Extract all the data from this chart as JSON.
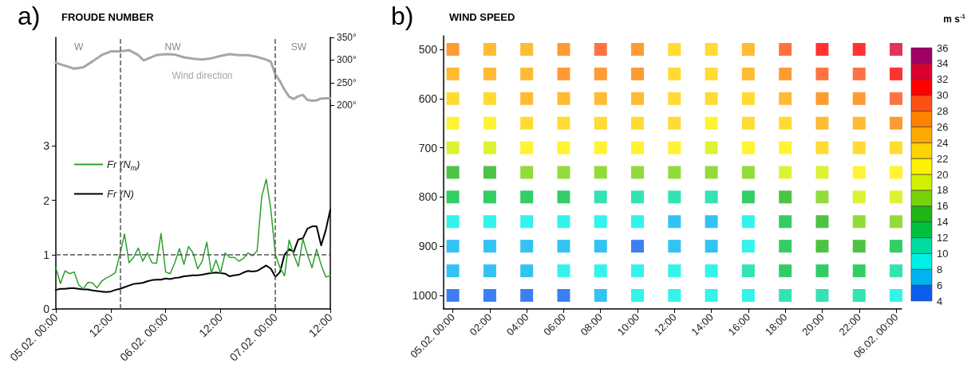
{
  "chart_data": [
    {
      "type": "line",
      "title": "FROUDE NUMBER",
      "annotations": [
        "a)",
        "W",
        "NW",
        "SW"
      ],
      "xlim": [
        "--02-05T00:00",
        "--02-07T12:00"
      ],
      "xticks": [
        {
          "value": "--02-05T00:00",
          "label": "05.02. 00:00"
        },
        {
          "value": "--02-05T12:00",
          "label": "12:00"
        },
        {
          "value": "--02-06T00:00",
          "label": "06.02. 00:00"
        },
        {
          "value": "--02-06T12:00",
          "label": "12:00"
        },
        {
          "value": "--02-07T00:00",
          "label": "07.02. 00:00"
        },
        {
          "value": "--02-07T12:00",
          "label": "12:00"
        }
      ],
      "ylim": [
        0,
        5
      ],
      "yticks": [
        0,
        1,
        2,
        3
      ],
      "y2lim": [
        -250,
        350
      ],
      "y2ticks": [
        {
          "value": 200,
          "label": "200°"
        },
        {
          "value": 250,
          "label": "250°"
        },
        {
          "value": 300,
          "label": "300°"
        },
        {
          "value": 350,
          "label": "350°"
        }
      ],
      "grid": false,
      "legend": "left",
      "marker": "none",
      "line_style": "solid",
      "ref_lines": [
        {
          "axis": "y",
          "value": 1,
          "color": "#555555",
          "line_style": "dashed"
        },
        {
          "axis": "x",
          "value": "--02-05T14:00",
          "color": "#555555",
          "line_style": "dashed"
        },
        {
          "axis": "x",
          "value": "--02-07T00:00",
          "color": "#555555",
          "line_style": "dashed"
        }
      ],
      "x": [
        "--02-05T00:00",
        "--02-05T01:00",
        "--02-05T02:00",
        "--02-05T03:00",
        "--02-05T04:00",
        "--02-05T05:00",
        "--02-05T06:00",
        "--02-05T07:00",
        "--02-05T08:00",
        "--02-05T09:00",
        "--02-05T10:00",
        "--02-05T11:00",
        "--02-05T12:00",
        "--02-05T13:00",
        "--02-05T14:00",
        "--02-05T15:00",
        "--02-05T16:00",
        "--02-05T17:00",
        "--02-05T18:00",
        "--02-05T19:00",
        "--02-05T20:00",
        "--02-05T21:00",
        "--02-05T22:00",
        "--02-05T23:00",
        "--02-06T00:00",
        "--02-06T01:00",
        "--02-06T02:00",
        "--02-06T03:00",
        "--02-06T04:00",
        "--02-06T05:00",
        "--02-06T06:00",
        "--02-06T07:00",
        "--02-06T08:00",
        "--02-06T09:00",
        "--02-06T10:00",
        "--02-06T11:00",
        "--02-06T12:00",
        "--02-06T13:00",
        "--02-06T14:00",
        "--02-06T15:00",
        "--02-06T16:00",
        "--02-06T17:00",
        "--02-06T18:00",
        "--02-06T19:00",
        "--02-06T20:00",
        "--02-06T21:00",
        "--02-06T22:00",
        "--02-06T23:00",
        "--02-07T00:00",
        "--02-07T01:00",
        "--02-07T02:00",
        "--02-07T03:00",
        "--02-07T04:00",
        "--02-07T05:00",
        "--02-07T06:00",
        "--02-07T07:00",
        "--02-07T08:00",
        "--02-07T09:00",
        "--02-07T10:00",
        "--02-07T11:00",
        "--02-07T12:00"
      ],
      "series": [
        {
          "name": "Fr (N$_{m}$)",
          "color": "#2ca02c",
          "values": [
            0.76,
            0.47,
            0.7,
            0.65,
            0.68,
            0.44,
            0.37,
            0.49,
            0.48,
            0.39,
            0.51,
            0.57,
            0.61,
            0.67,
            1.0,
            1.38,
            0.85,
            0.95,
            1.12,
            0.88,
            1.03,
            0.85,
            0.84,
            1.39,
            0.68,
            0.65,
            0.85,
            1.11,
            0.82,
            1.15,
            1.03,
            0.74,
            0.88,
            1.23,
            0.66,
            0.9,
            0.66,
            1.03,
            0.95,
            0.95,
            0.88,
            0.93,
            1.03,
            0.98,
            1.07,
            2.07,
            2.39,
            1.83,
            1.0,
            0.76,
            0.61,
            1.27,
            1.0,
            0.78,
            1.29,
            1.0,
            0.76,
            1.1,
            0.81,
            0.59,
            0.61
          ]
        },
        {
          "name": "Fr (N)",
          "color": "#000000",
          "values": [
            0.35,
            0.37,
            0.37,
            0.38,
            0.38,
            0.37,
            0.36,
            0.36,
            0.34,
            0.33,
            0.32,
            0.31,
            0.32,
            0.35,
            0.37,
            0.4,
            0.43,
            0.46,
            0.47,
            0.48,
            0.51,
            0.53,
            0.54,
            0.54,
            0.56,
            0.55,
            0.57,
            0.58,
            0.6,
            0.61,
            0.62,
            0.62,
            0.63,
            0.65,
            0.66,
            0.67,
            0.66,
            0.65,
            0.6,
            0.62,
            0.63,
            0.67,
            0.7,
            0.69,
            0.7,
            0.75,
            0.8,
            0.74,
            0.59,
            0.68,
            1.0,
            1.1,
            1.05,
            1.28,
            1.3,
            1.48,
            1.52,
            1.52,
            1.17,
            1.45,
            1.83
          ]
        },
        {
          "name": "Wind direction",
          "color": "#a6a6a6",
          "axis": "y2",
          "x": [
            "--02-05T00:00",
            "--02-05T04:00",
            "--02-05T06:00",
            "--02-05T08:00",
            "--02-05T10:00",
            "--02-05T12:00",
            "--02-05T14:00",
            "--02-05T16:00",
            "--02-05T18:00",
            "--02-05T19:12",
            "--02-05T22:00",
            "--02-06T00:00",
            "--02-06T02:00",
            "--02-06T04:00",
            "--02-06T06:00",
            "--02-06T08:00",
            "--02-06T10:00",
            "--02-06T12:00",
            "--02-06T14:00",
            "--02-06T16:00",
            "--02-06T18:00",
            "--02-06T20:00",
            "--02-06T22:00",
            "--02-06T23:00",
            "--02-07T00:00",
            "--02-07T01:00",
            "--02-07T02:00",
            "--02-07T03:00",
            "--02-07T04:00",
            "--02-07T05:00",
            "--02-07T06:00",
            "--02-07T07:00",
            "--02-07T08:00",
            "--02-07T09:00",
            "--02-07T10:00",
            "--02-07T12:00"
          ],
          "values": [
            294,
            281,
            284,
            297,
            311,
            319,
            319,
            322,
            311,
            299,
            311,
            313,
            312,
            306,
            303,
            301,
            304,
            309,
            313,
            311,
            311,
            307,
            301,
            296,
            268,
            253,
            234,
            219,
            214,
            220,
            223,
            212,
            210,
            211,
            215,
            216
          ]
        }
      ]
    },
    {
      "type": "scatter",
      "title": "WIND SPEED",
      "annotations": [
        "b)"
      ],
      "clabel": "m s$^{-1}$",
      "marker": "square",
      "xlim": [
        "--02-04T23:30",
        "--02-06T00:18"
      ],
      "xticks": [
        {
          "value": "--02-05T00:00",
          "label": "05.02. 00:00"
        },
        {
          "value": "--02-05T02:00",
          "label": "02:00"
        },
        {
          "value": "--02-05T04:00",
          "label": "04:00"
        },
        {
          "value": "--02-05T06:00",
          "label": "06:00"
        },
        {
          "value": "--02-05T08:00",
          "label": "08:00"
        },
        {
          "value": "--02-05T10:00",
          "label": "10:00"
        },
        {
          "value": "--02-05T12:00",
          "label": "12:00"
        },
        {
          "value": "--02-05T14:00",
          "label": "14:00"
        },
        {
          "value": "--02-05T16:00",
          "label": "16:00"
        },
        {
          "value": "--02-05T18:00",
          "label": "18:00"
        },
        {
          "value": "--02-05T20:00",
          "label": "20:00"
        },
        {
          "value": "--02-05T22:00",
          "label": "22:00"
        },
        {
          "value": "--02-06T00:00",
          "label": "06.02. 00:00"
        }
      ],
      "ylim": [
        1027.5,
        472.5
      ],
      "yticks": [
        500,
        600,
        700,
        800,
        900,
        1000
      ],
      "clim": [
        4,
        36
      ],
      "cticks": [
        4,
        6,
        8,
        10,
        12,
        14,
        16,
        18,
        20,
        22,
        24,
        26,
        28,
        30,
        32,
        34,
        36
      ],
      "series": [
        {
          "x": [
            "--02-05T00:00",
            "--02-05T02:00",
            "--02-05T04:00",
            "--02-05T06:00",
            "--02-05T08:00",
            "--02-05T10:00",
            "--02-05T12:00",
            "--02-05T14:00",
            "--02-05T16:00",
            "--02-05T18:00",
            "--02-05T20:00",
            "--02-05T22:00",
            "--02-06T00:00",
            "--02-05T00:00",
            "--02-05T02:00",
            "--02-05T04:00",
            "--02-05T06:00",
            "--02-05T08:00",
            "--02-05T10:00",
            "--02-05T12:00",
            "--02-05T14:00",
            "--02-05T16:00",
            "--02-05T18:00",
            "--02-05T20:00",
            "--02-05T22:00",
            "--02-06T00:00",
            "--02-05T00:00",
            "--02-05T02:00",
            "--02-05T04:00",
            "--02-05T06:00",
            "--02-05T08:00",
            "--02-05T10:00",
            "--02-05T12:00",
            "--02-05T14:00",
            "--02-05T16:00",
            "--02-05T18:00",
            "--02-05T20:00",
            "--02-05T22:00",
            "--02-06T00:00",
            "--02-05T00:00",
            "--02-05T02:00",
            "--02-05T04:00",
            "--02-05T06:00",
            "--02-05T08:00",
            "--02-05T10:00",
            "--02-05T12:00",
            "--02-05T14:00",
            "--02-05T16:00",
            "--02-05T18:00",
            "--02-05T20:00",
            "--02-05T22:00",
            "--02-06T00:00",
            "--02-05T00:00",
            "--02-05T02:00",
            "--02-05T04:00",
            "--02-05T06:00",
            "--02-05T08:00",
            "--02-05T10:00",
            "--02-05T12:00",
            "--02-05T14:00",
            "--02-05T16:00",
            "--02-05T18:00",
            "--02-05T20:00",
            "--02-05T22:00",
            "--02-06T00:00",
            "--02-05T00:00",
            "--02-05T02:00",
            "--02-05T04:00",
            "--02-05T06:00",
            "--02-05T08:00",
            "--02-05T10:00",
            "--02-05T12:00",
            "--02-05T14:00",
            "--02-05T16:00",
            "--02-05T18:00",
            "--02-05T20:00",
            "--02-05T22:00",
            "--02-06T00:00",
            "--02-05T00:00",
            "--02-05T02:00",
            "--02-05T04:00",
            "--02-05T06:00",
            "--02-05T08:00",
            "--02-05T10:00",
            "--02-05T12:00",
            "--02-05T14:00",
            "--02-05T16:00",
            "--02-05T18:00",
            "--02-05T20:00",
            "--02-05T22:00",
            "--02-06T00:00",
            "--02-05T00:00",
            "--02-05T02:00",
            "--02-05T04:00",
            "--02-05T06:00",
            "--02-05T08:00",
            "--02-05T10:00",
            "--02-05T12:00",
            "--02-05T14:00",
            "--02-05T16:00",
            "--02-05T18:00",
            "--02-05T20:00",
            "--02-05T22:00",
            "--02-06T00:00",
            "--02-05T00:00",
            "--02-05T02:00",
            "--02-05T04:00",
            "--02-05T06:00",
            "--02-05T08:00",
            "--02-05T10:00",
            "--02-05T12:00",
            "--02-05T14:00",
            "--02-05T16:00",
            "--02-05T18:00",
            "--02-05T20:00",
            "--02-05T22:00",
            "--02-06T00:00",
            "--02-05T00:00",
            "--02-05T02:00",
            "--02-05T04:00",
            "--02-05T06:00",
            "--02-05T08:00",
            "--02-05T10:00",
            "--02-05T12:00",
            "--02-05T14:00",
            "--02-05T16:00",
            "--02-05T18:00",
            "--02-05T20:00",
            "--02-05T22:00",
            "--02-06T00:00",
            "--02-05T00:00",
            "--02-05T02:00",
            "--02-05T04:00",
            "--02-05T06:00",
            "--02-05T08:00",
            "--02-05T10:00",
            "--02-05T12:00",
            "--02-05T14:00",
            "--02-05T16:00",
            "--02-05T18:00",
            "--02-05T20:00",
            "--02-05T22:00",
            "--02-06T00:00"
          ],
          "values": [
            500,
            500,
            500,
            500,
            500,
            500,
            500,
            500,
            500,
            500,
            500,
            500,
            500,
            550,
            550,
            550,
            550,
            550,
            550,
            550,
            550,
            550,
            550,
            550,
            550,
            550,
            600,
            600,
            600,
            600,
            600,
            600,
            600,
            600,
            600,
            600,
            600,
            600,
            600,
            650,
            650,
            650,
            650,
            650,
            650,
            650,
            650,
            650,
            650,
            650,
            650,
            650,
            700,
            700,
            700,
            700,
            700,
            700,
            700,
            700,
            700,
            700,
            700,
            700,
            700,
            750,
            750,
            750,
            750,
            750,
            750,
            750,
            750,
            750,
            750,
            750,
            750,
            750,
            800,
            800,
            800,
            800,
            800,
            800,
            800,
            800,
            800,
            800,
            800,
            800,
            800,
            850,
            850,
            850,
            850,
            850,
            850,
            850,
            850,
            850,
            850,
            850,
            850,
            850,
            900,
            900,
            900,
            900,
            900,
            900,
            900,
            900,
            900,
            900,
            900,
            900,
            900,
            950,
            950,
            950,
            950,
            950,
            950,
            950,
            950,
            950,
            950,
            950,
            950,
            950,
            1000,
            1000,
            1000,
            1000,
            1000,
            1000,
            1000,
            1000,
            1000,
            1000,
            1000,
            1000,
            1000
          ],
          "cvalues": [
            26,
            25,
            25,
            26,
            29,
            27,
            22,
            22,
            25,
            29,
            30,
            30,
            33,
            25,
            25,
            25,
            26,
            27,
            26,
            23,
            22,
            24,
            26,
            28,
            29,
            30,
            22,
            23,
            24,
            25,
            25,
            25,
            23,
            22,
            23,
            24,
            26,
            27,
            28,
            20,
            21,
            22,
            23,
            23,
            23,
            22,
            21,
            22,
            23,
            24,
            25,
            26,
            18,
            18,
            20,
            21,
            21,
            21,
            20,
            19,
            20,
            21,
            22,
            22,
            23,
            15,
            15,
            16,
            17,
            16,
            16,
            16,
            16,
            17,
            18,
            19,
            20,
            21,
            12,
            12,
            12,
            12,
            11,
            11,
            10,
            10,
            13,
            15,
            17,
            18,
            19,
            9,
            9,
            9,
            9,
            8,
            8,
            7,
            7,
            9,
            12,
            15,
            16,
            17,
            6,
            6,
            6,
            7,
            6,
            5,
            6,
            7,
            9,
            12,
            14,
            14,
            13,
            7,
            7,
            7,
            8,
            8,
            9,
            9,
            9,
            10,
            12,
            12,
            12,
            11,
            5,
            5,
            5,
            5,
            6,
            8,
            8,
            8,
            9,
            10,
            11,
            10,
            9
          ]
        }
      ]
    }
  ]
}
